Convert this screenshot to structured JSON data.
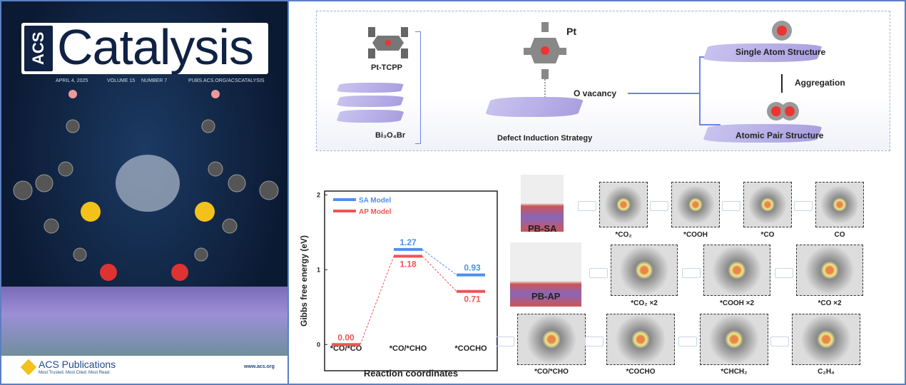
{
  "cover": {
    "acs": "ACS",
    "title": "Catalysis",
    "date": "APRIL 4, 2025",
    "volume": "VOLUME 15",
    "number": "NUMBER 7",
    "url": "PUBS.ACS.ORG/ACSCATALYSIS",
    "publisher": "ACS Publications",
    "tagline": "Most Trusted. Most Cited. Most Read.",
    "site": "www.acs.org"
  },
  "scheme": {
    "pt_tcpp": "Pt-TCPP",
    "bi": "Bi₃O₄Br",
    "pt": "Pt",
    "vacancy": "O vacancy",
    "strategy": "Defect Induction Strategy",
    "single": "Single Atom Structure",
    "aggregation": "Aggregation",
    "pair": "Atomic Pair Structure"
  },
  "chart_data": {
    "type": "energy-profile",
    "ylabel": "Gibbs free energy (eV)",
    "xlabel": "Reaction coordinates",
    "ylim": [
      -0.35,
      2.05
    ],
    "yticks": [
      "0",
      "1",
      "2"
    ],
    "categories": [
      "*CO/*CO",
      "*CO/*CHO",
      "*COCHO"
    ],
    "series": [
      {
        "name": "SA Model",
        "color": "#4d8ff0",
        "values": [
          null,
          1.27,
          0.93
        ],
        "labels": [
          "",
          "1.27",
          "0.93"
        ]
      },
      {
        "name": "AP Model",
        "color": "#f05454",
        "values": [
          0.0,
          1.18,
          0.71
        ],
        "labels": [
          "0.00",
          "1.18",
          "0.71"
        ]
      }
    ]
  },
  "pathways": {
    "pb_sa": "PB-SA",
    "pb_ap": "PB-AP",
    "row1": [
      "*CO₂",
      "*COOH",
      "*CO",
      "CO"
    ],
    "row2": [
      "*CO₂ ×2",
      "*COOH ×2",
      "*CO ×2"
    ],
    "row3": [
      "*CO/*CHO",
      "*COCHO",
      "*CHCH₂",
      "C₂H₄"
    ]
  }
}
